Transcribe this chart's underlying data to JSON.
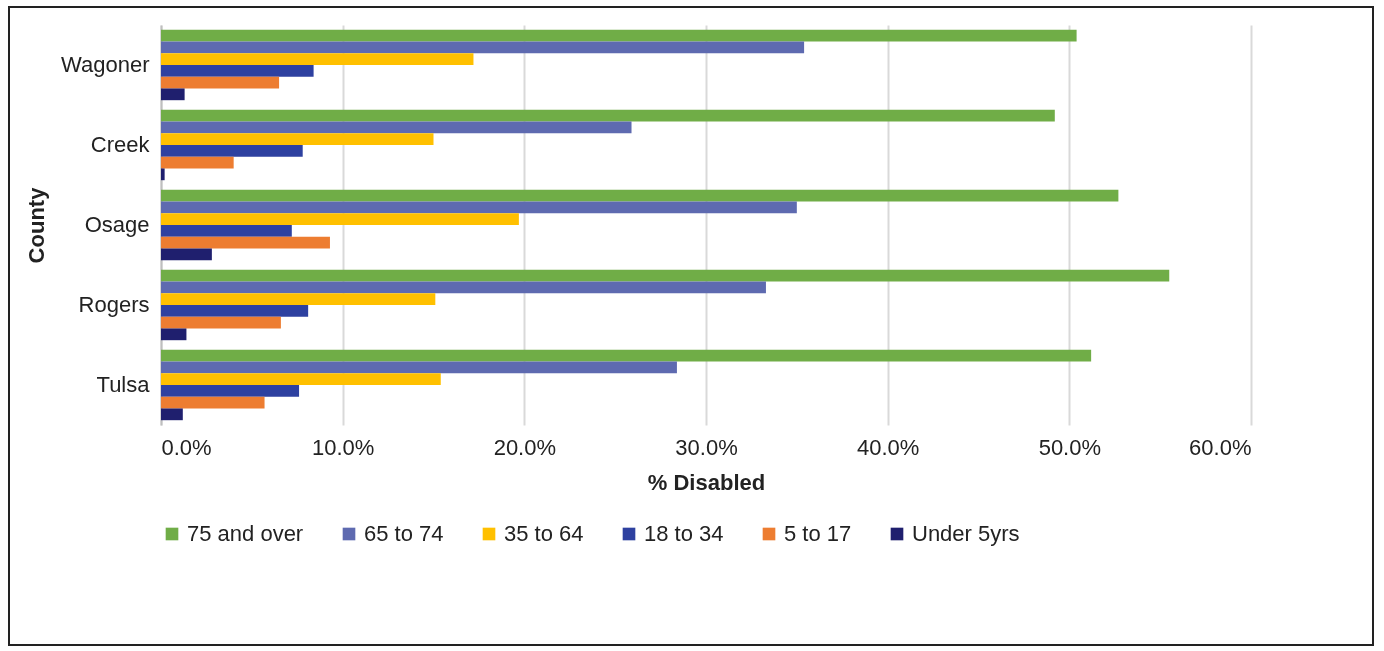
{
  "chart_data": {
    "type": "bar",
    "orientation": "horizontal",
    "xlabel": "% Disabled",
    "ylabel": "County",
    "categories": [
      "Wagoner",
      "Creek",
      "Osage",
      "Rogers",
      "Tulsa"
    ],
    "series": [
      {
        "name": "75 and over",
        "color": "#70ad47",
        "values": [
          50.4,
          49.2,
          52.7,
          55.5,
          51.2
        ]
      },
      {
        "name": "65 to 74",
        "color": "#5e6ab0",
        "values": [
          35.4,
          25.9,
          35.0,
          33.3,
          28.4
        ]
      },
      {
        "name": "35 to 64",
        "color": "#ffc000",
        "values": [
          17.2,
          15.0,
          19.7,
          15.1,
          15.4
        ]
      },
      {
        "name": "18 to 34",
        "color": "#2e41a0",
        "values": [
          8.4,
          7.8,
          7.2,
          8.1,
          7.6
        ]
      },
      {
        "name": "5 to 17",
        "color": "#ed7d31",
        "values": [
          6.5,
          4.0,
          9.3,
          6.6,
          5.7
        ]
      },
      {
        "name": "Under 5yrs",
        "color": "#1f1f6e",
        "values": [
          1.3,
          0.2,
          2.8,
          1.4,
          1.2
        ]
      }
    ],
    "xlim": [
      0,
      60
    ],
    "xticks": [
      {
        "value": 0,
        "label": "0.0%"
      },
      {
        "value": 10,
        "label": "10.0%"
      },
      {
        "value": 20,
        "label": "20.0%"
      },
      {
        "value": 30,
        "label": "30.0%"
      },
      {
        "value": 40,
        "label": "40.0%"
      },
      {
        "value": 50,
        "label": "50.0%"
      },
      {
        "value": 60,
        "label": "60.0%"
      }
    ],
    "grid": "x",
    "legend": "bottom"
  }
}
